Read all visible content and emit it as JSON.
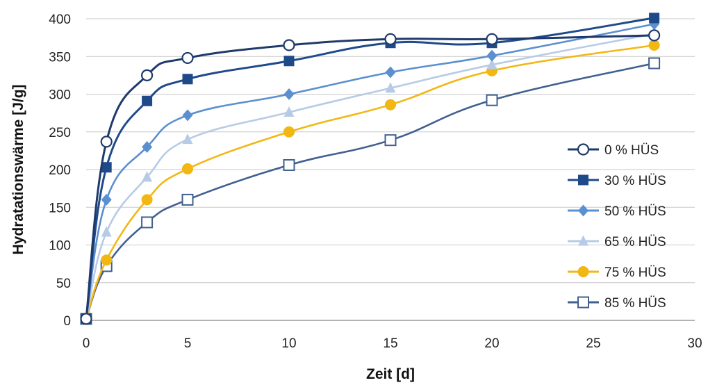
{
  "chart_data": {
    "type": "line",
    "title": "",
    "xlabel": "Zeit [d]",
    "ylabel": "Hydratationswärme [J/g]",
    "xlim": [
      0,
      30
    ],
    "ylim": [
      0,
      400
    ],
    "xticks": [
      "0",
      "5",
      "10",
      "15",
      "20",
      "25",
      "30"
    ],
    "yticks": [
      "0",
      "50",
      "100",
      "150",
      "200",
      "250",
      "300",
      "350",
      "400"
    ],
    "grid": "horizontal",
    "legend_position": "right",
    "series": [
      {
        "name": "0 % HÜS",
        "color": "#1f3a6a",
        "marker": "circle-open",
        "x": [
          0,
          1,
          3,
          5,
          10,
          15,
          20,
          28
        ],
        "y": [
          2,
          237,
          325,
          348,
          365,
          373,
          373,
          378
        ]
      },
      {
        "name": "30 % HÜS",
        "color": "#1f4a8a",
        "marker": "square-filled",
        "x": [
          0,
          1,
          3,
          5,
          10,
          15,
          20,
          28
        ],
        "y": [
          2,
          203,
          291,
          320,
          344,
          368,
          368,
          401
        ]
      },
      {
        "name": "50 % HÜS",
        "color": "#5a8fd0",
        "marker": "diamond-filled",
        "x": [
          0,
          1,
          3,
          5,
          10,
          15,
          20,
          28
        ],
        "y": [
          2,
          160,
          230,
          272,
          300,
          329,
          351,
          393
        ]
      },
      {
        "name": "65 % HÜS",
        "color": "#b7cbe6",
        "marker": "triangle-filled",
        "x": [
          0,
          1,
          3,
          5,
          10,
          15,
          20,
          28
        ],
        "y": [
          2,
          117,
          190,
          240,
          276,
          308,
          339,
          380
        ]
      },
      {
        "name": "75 % HÜS",
        "color": "#f2b713",
        "marker": "circle-filled",
        "x": [
          0,
          1,
          3,
          5,
          10,
          15,
          20,
          28
        ],
        "y": [
          2,
          80,
          160,
          201,
          250,
          286,
          331,
          365
        ]
      },
      {
        "name": "85 % HÜS",
        "color": "#40608f",
        "marker": "square-open",
        "x": [
          0,
          1,
          3,
          5,
          10,
          15,
          20,
          28
        ],
        "y": [
          2,
          72,
          130,
          160,
          206,
          239,
          292,
          341
        ]
      }
    ]
  }
}
